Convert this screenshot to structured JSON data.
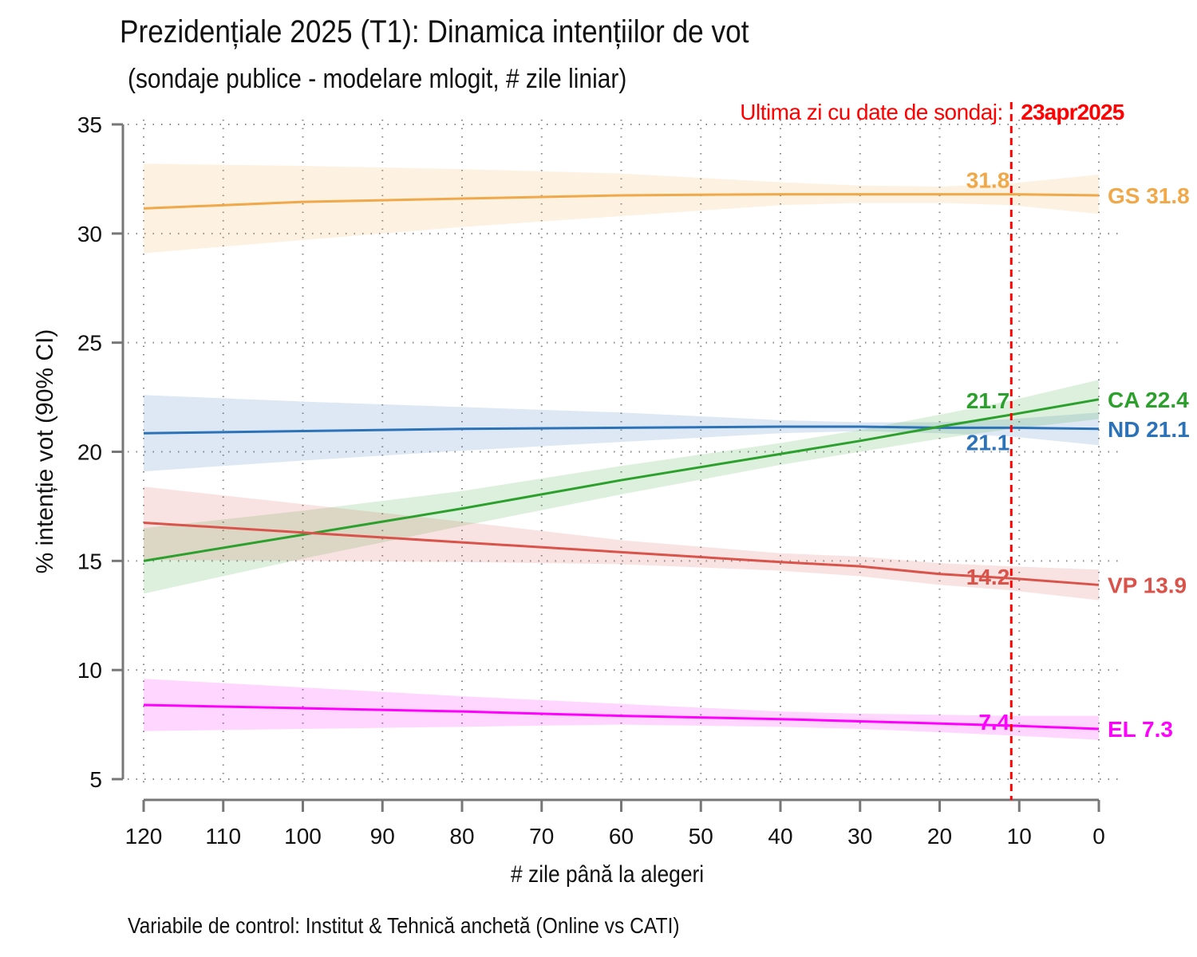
{
  "chart_data": {
    "type": "line",
    "title": "Prezidențiale 2025 (T1): Dinamica intențiilor de vot",
    "subtitle": "(sondaje publice - modelare mlogit, # zile liniar)",
    "xlabel": "# zile până la alegeri",
    "ylabel": "% intenție vot (90% CI)",
    "note": "Variabile de control: Institut & Tehnică anchetă (Online vs CATI)",
    "xlim": [
      120,
      0
    ],
    "ylim": [
      5,
      35
    ],
    "xticks": [
      120,
      110,
      100,
      90,
      80,
      70,
      60,
      50,
      40,
      30,
      20,
      10,
      0
    ],
    "yticks": [
      5,
      10,
      15,
      20,
      25,
      30,
      35
    ],
    "grid": true,
    "vline": {
      "x": 11,
      "label": "Ultima zi cu date de sondaj:",
      "date": "23apr2025",
      "color": "#ff0000"
    },
    "x": [
      120,
      100,
      80,
      60,
      40,
      30,
      20,
      11,
      0
    ],
    "series": [
      {
        "name": "GS",
        "color": "#f0a848",
        "end_label": "GS 31.8",
        "vline_label": "31.8",
        "values": [
          31.15,
          31.45,
          31.6,
          31.75,
          31.8,
          31.8,
          31.8,
          31.8,
          31.75
        ],
        "lower": [
          29.1,
          29.7,
          30.3,
          30.8,
          31.3,
          31.4,
          31.4,
          31.3,
          30.9
        ],
        "upper": [
          33.2,
          33.1,
          32.95,
          32.75,
          32.35,
          32.2,
          32.15,
          32.3,
          32.7
        ]
      },
      {
        "name": "ND",
        "color": "#2c72b8",
        "end_label": "ND 21.1",
        "vline_label": "21.1",
        "values": [
          20.85,
          20.95,
          21.05,
          21.1,
          21.15,
          21.15,
          21.1,
          21.1,
          21.05
        ],
        "lower": [
          19.1,
          19.6,
          20.05,
          20.45,
          20.85,
          20.95,
          20.85,
          20.7,
          20.3
        ],
        "upper": [
          22.6,
          22.3,
          22.05,
          21.8,
          21.45,
          21.35,
          21.35,
          21.5,
          21.8
        ]
      },
      {
        "name": "CA",
        "color": "#2ca02c",
        "end_label": "CA 22.4",
        "vline_label": "21.7",
        "values": [
          15.0,
          16.2,
          17.4,
          18.7,
          19.9,
          20.5,
          21.15,
          21.7,
          22.4
        ],
        "lower": [
          13.5,
          15.1,
          16.6,
          18.05,
          19.4,
          20.0,
          20.6,
          21.05,
          21.5
        ],
        "upper": [
          16.5,
          17.3,
          18.2,
          19.35,
          20.4,
          21.0,
          21.7,
          22.35,
          23.3
        ]
      },
      {
        "name": "VP",
        "color": "#d9534a",
        "end_label": "VP 13.9",
        "vline_label": "14.2",
        "values": [
          16.75,
          16.3,
          15.85,
          15.4,
          14.95,
          14.75,
          14.4,
          14.2,
          13.9
        ],
        "lower": [
          15.05,
          15.0,
          14.95,
          14.85,
          14.55,
          14.3,
          13.9,
          13.65,
          13.2
        ],
        "upper": [
          18.4,
          17.6,
          16.8,
          15.95,
          15.35,
          15.2,
          14.9,
          14.75,
          14.6
        ]
      },
      {
        "name": "EL",
        "color": "#ff00ff",
        "end_label": "EL 7.3",
        "vline_label": "7.4",
        "values": [
          8.4,
          8.25,
          8.1,
          7.9,
          7.75,
          7.65,
          7.55,
          7.45,
          7.3
        ],
        "lower": [
          7.2,
          7.3,
          7.4,
          7.5,
          7.4,
          7.3,
          7.15,
          7.0,
          6.8
        ],
        "upper": [
          9.6,
          9.2,
          8.8,
          8.45,
          8.1,
          8.0,
          7.95,
          7.9,
          7.9
        ]
      }
    ]
  }
}
